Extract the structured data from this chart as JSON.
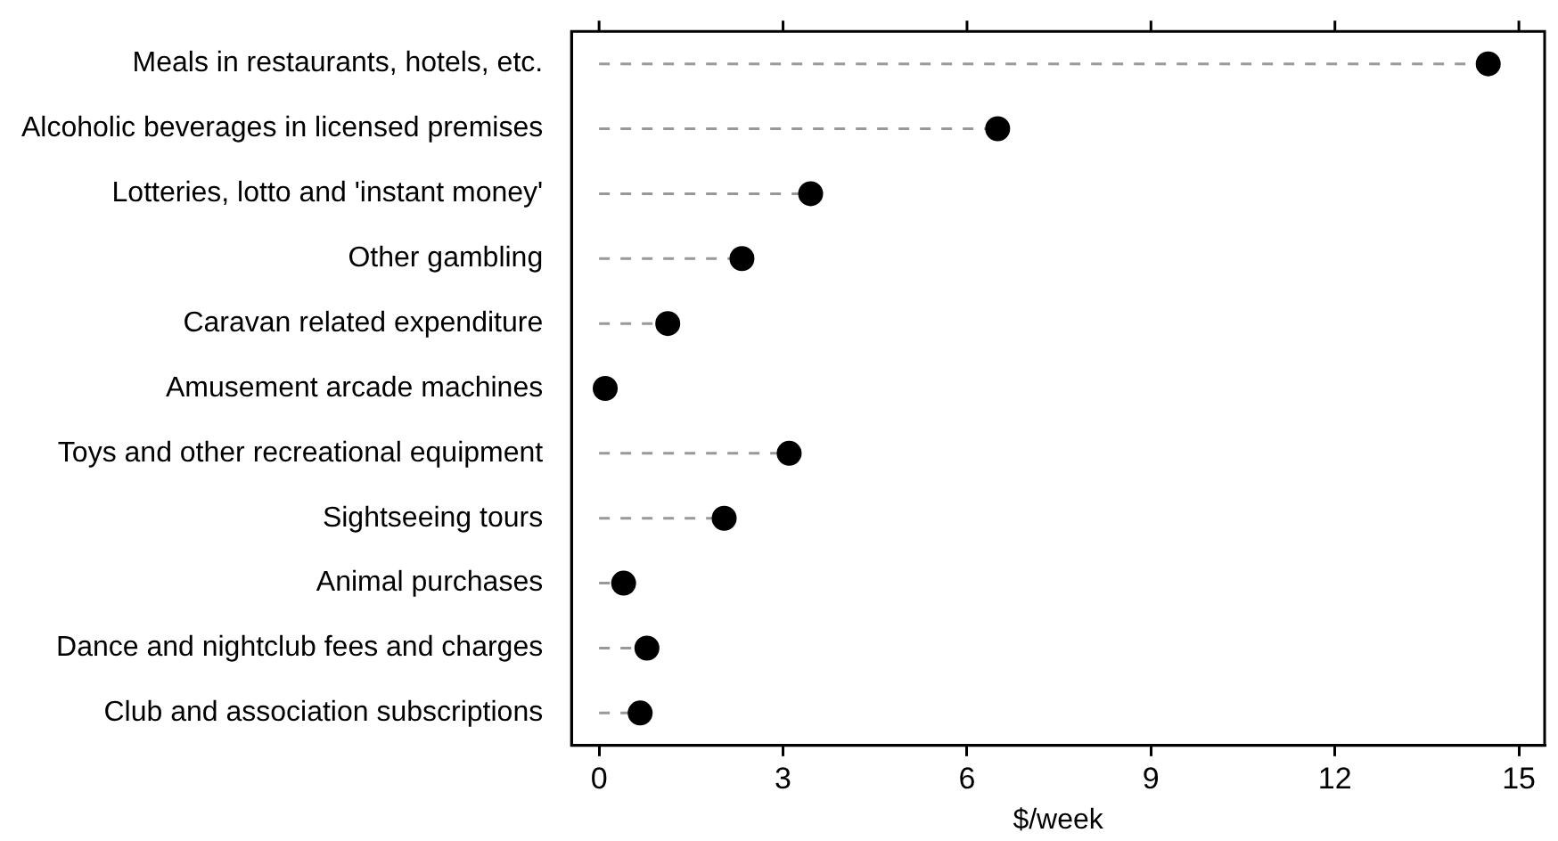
{
  "chart_data": {
    "type": "lollipop",
    "orientation": "horizontal",
    "xlabel": "$/week",
    "categories": [
      "Meals in restaurants, hotels, etc.",
      "Alcoholic beverages in licensed premises",
      "Lotteries, lotto and 'instant money'",
      "Other gambling",
      "Caravan related expenditure",
      "Amusement arcade machines",
      "Toys and other recreational equipment",
      "Sightseeing tours",
      "Animal purchases",
      "Dance and nightclub fees and charges",
      "Club and association subscriptions"
    ],
    "values": [
      14.5,
      6.5,
      3.45,
      2.33,
      1.12,
      0.1,
      3.1,
      2.04,
      0.4,
      0.78,
      0.67
    ],
    "color": "#000000",
    "marker": "circle",
    "line_style": "dashed",
    "grid": false,
    "legend": false,
    "xlim": [
      -0.45,
      15.42
    ],
    "xticks": [
      0,
      3,
      6,
      9,
      12,
      15
    ]
  }
}
